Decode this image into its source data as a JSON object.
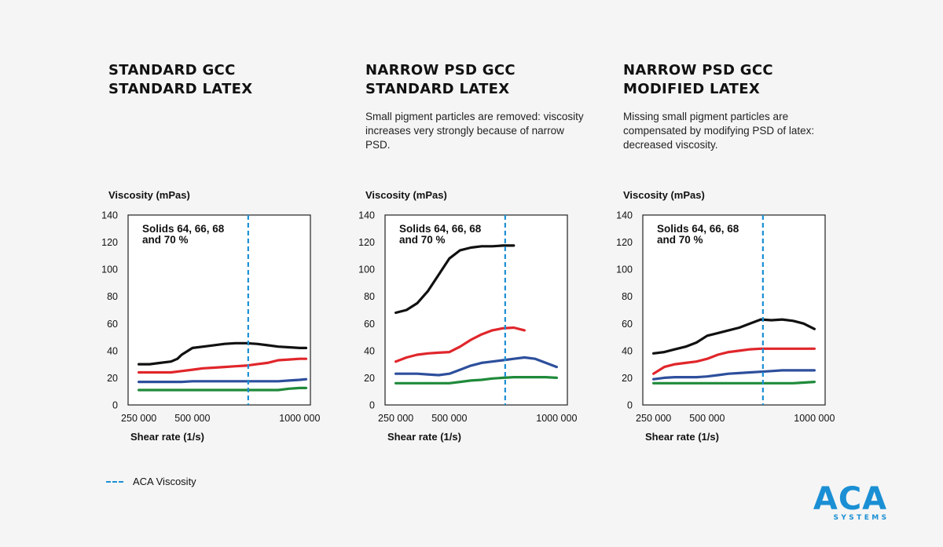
{
  "colors": {
    "black": "#111111",
    "red": "#e0262b",
    "blue": "#2d4f9c",
    "green": "#1f8a3a",
    "aca": "#1b8fd4"
  },
  "panels": [
    {
      "title1": "STANDARD GCC",
      "title2": "STANDARD LATEX",
      "desc": "",
      "ylabel": "Viscosity (mPas)",
      "xlabel": "Shear rate (1/s)",
      "annotation1": "Solids 64, 66, 68",
      "annotation2": "and 70 %"
    },
    {
      "title1": "NARROW PSD GCC",
      "title2": "STANDARD LATEX",
      "desc": "Small pigment particles are removed: viscosity increases very strongly because of narrow PSD.",
      "ylabel": "Viscosity (mPas)",
      "xlabel": "Shear rate  (1/s)",
      "annotation1": "Solids 64, 66, 68",
      "annotation2": "and 70 %"
    },
    {
      "title1": "NARROW PSD GCC",
      "title2": "MODIFIED LATEX",
      "desc": "Missing small pigment particles are compensated by modifying PSD of latex: decreased viscosity.",
      "ylabel": "Viscosity (mPas)",
      "xlabel": "Shear rate (1/s)",
      "annotation1": "Solids 64, 66, 68",
      "annotation2": "and 70 %"
    }
  ],
  "legend": {
    "label": "ACA Viscosity"
  },
  "logo": {
    "main": "ACA",
    "sub": "SYSTEMS"
  },
  "chart_data": [
    {
      "type": "line",
      "ylabel": "Viscosity (mPas)",
      "xlabel": "Shear rate (1/s)",
      "ylim": [
        0,
        140
      ],
      "yticks": [
        0,
        20,
        40,
        60,
        80,
        100,
        120,
        140
      ],
      "xlim": [
        200000,
        1050000
      ],
      "xticks": [
        250000,
        500000,
        1000000
      ],
      "xticklabels": [
        "250 000",
        "500 000",
        "1000 000"
      ],
      "aca_line_x": 760000,
      "series": [
        {
          "color": "black",
          "x": [
            250000,
            300000,
            350000,
            400000,
            430000,
            450000,
            500000,
            550000,
            600000,
            650000,
            700000,
            750000,
            800000,
            850000,
            900000,
            950000,
            1000000,
            1030000
          ],
          "y": [
            30,
            30,
            31,
            32,
            34,
            37,
            42,
            43,
            44,
            45,
            45.5,
            45.5,
            45,
            44,
            43,
            42.5,
            42,
            42
          ]
        },
        {
          "color": "red",
          "x": [
            250000,
            300000,
            350000,
            400000,
            450000,
            500000,
            550000,
            600000,
            650000,
            700000,
            750000,
            800000,
            850000,
            900000,
            950000,
            1000000,
            1030000
          ],
          "y": [
            24,
            24,
            24,
            24,
            25,
            26,
            27,
            27.5,
            28,
            28.5,
            29,
            30,
            31,
            33,
            33.5,
            34,
            34
          ]
        },
        {
          "color": "blue",
          "x": [
            250000,
            300000,
            350000,
            400000,
            450000,
            500000,
            550000,
            600000,
            650000,
            700000,
            750000,
            800000,
            850000,
            900000,
            950000,
            1000000,
            1030000
          ],
          "y": [
            17,
            17,
            17,
            17,
            17,
            17.5,
            17.5,
            17.5,
            17.5,
            17.5,
            17.5,
            17.5,
            17.5,
            17.5,
            18,
            18.5,
            19
          ]
        },
        {
          "color": "green",
          "x": [
            250000,
            300000,
            350000,
            400000,
            450000,
            500000,
            550000,
            600000,
            650000,
            700000,
            750000,
            800000,
            850000,
            900000,
            950000,
            1000000,
            1030000
          ],
          "y": [
            11,
            11,
            11,
            11,
            11,
            11,
            11,
            11,
            11,
            11,
            11,
            11,
            11,
            11,
            12,
            12.5,
            12.5
          ]
        }
      ]
    },
    {
      "type": "line",
      "ylabel": "Viscosity (mPas)",
      "xlabel": "Shear rate  (1/s)",
      "ylim": [
        0,
        140
      ],
      "yticks": [
        0,
        20,
        40,
        60,
        80,
        100,
        120,
        140
      ],
      "xlim": [
        200000,
        1050000
      ],
      "xticks": [
        250000,
        500000,
        1000000
      ],
      "xticklabels": [
        "250 000",
        "500 000",
        "1000 000"
      ],
      "aca_line_x": 760000,
      "series": [
        {
          "color": "black",
          "x": [
            250000,
            300000,
            350000,
            400000,
            450000,
            500000,
            550000,
            600000,
            650000,
            700000,
            750000,
            800000
          ],
          "y": [
            68,
            70,
            75,
            84,
            96,
            108,
            114,
            116,
            117,
            117,
            117.5,
            117.5
          ]
        },
        {
          "color": "red",
          "x": [
            250000,
            300000,
            350000,
            400000,
            450000,
            500000,
            550000,
            600000,
            650000,
            700000,
            750000,
            800000,
            850000
          ],
          "y": [
            32,
            35,
            37,
            38,
            38.5,
            39,
            43,
            48,
            52,
            55,
            56.5,
            57,
            55
          ]
        },
        {
          "color": "blue",
          "x": [
            250000,
            300000,
            350000,
            400000,
            450000,
            500000,
            550000,
            600000,
            650000,
            700000,
            750000,
            800000,
            850000,
            900000,
            950000,
            1000000
          ],
          "y": [
            23,
            23,
            23,
            22.5,
            22,
            23,
            26,
            29,
            31,
            32,
            33,
            34,
            35,
            34,
            31,
            28
          ]
        },
        {
          "color": "green",
          "x": [
            250000,
            300000,
            350000,
            400000,
            450000,
            500000,
            550000,
            600000,
            650000,
            700000,
            750000,
            800000,
            850000,
            900000,
            950000,
            1000000
          ],
          "y": [
            16,
            16,
            16,
            16,
            16,
            16,
            17,
            18,
            18.5,
            19.5,
            20,
            20.5,
            20.5,
            20.5,
            20.5,
            20
          ]
        }
      ]
    },
    {
      "type": "line",
      "ylabel": "Viscosity (mPas)",
      "xlabel": "Shear rate (1/s)",
      "ylim": [
        0,
        140
      ],
      "yticks": [
        0,
        20,
        40,
        60,
        80,
        100,
        120,
        140
      ],
      "xlim": [
        200000,
        1050000
      ],
      "xticks": [
        250000,
        500000,
        1000000
      ],
      "xticklabels": [
        "250 000",
        "500 000",
        "1000 000"
      ],
      "aca_line_x": 760000,
      "series": [
        {
          "color": "black",
          "x": [
            250000,
            300000,
            350000,
            400000,
            450000,
            500000,
            550000,
            600000,
            650000,
            700000,
            750000,
            800000,
            850000,
            900000,
            950000,
            1000000
          ],
          "y": [
            38,
            39,
            41,
            43,
            46,
            51,
            53,
            55,
            57,
            60,
            63,
            62.5,
            63,
            62,
            60,
            56
          ]
        },
        {
          "color": "red",
          "x": [
            250000,
            300000,
            350000,
            400000,
            450000,
            500000,
            550000,
            600000,
            650000,
            700000,
            750000,
            800000,
            850000,
            900000,
            950000,
            1000000
          ],
          "y": [
            23,
            28,
            30,
            31,
            32,
            34,
            37,
            39,
            40,
            41,
            41.5,
            41.5,
            41.5,
            41.5,
            41.5,
            41.5
          ]
        },
        {
          "color": "blue",
          "x": [
            250000,
            300000,
            350000,
            400000,
            450000,
            500000,
            550000,
            600000,
            650000,
            700000,
            750000,
            800000,
            850000,
            900000,
            950000,
            1000000
          ],
          "y": [
            19,
            20,
            20.5,
            20.5,
            20.5,
            21,
            22,
            23,
            23.5,
            24,
            24.5,
            25,
            25.5,
            25.5,
            25.5,
            25.5
          ]
        },
        {
          "color": "green",
          "x": [
            250000,
            300000,
            350000,
            400000,
            450000,
            500000,
            550000,
            600000,
            650000,
            700000,
            750000,
            800000,
            850000,
            900000,
            950000,
            1000000
          ],
          "y": [
            16,
            16,
            16,
            16,
            16,
            16,
            16,
            16,
            16,
            16,
            16,
            16,
            16,
            16,
            16.5,
            17
          ]
        }
      ]
    }
  ]
}
